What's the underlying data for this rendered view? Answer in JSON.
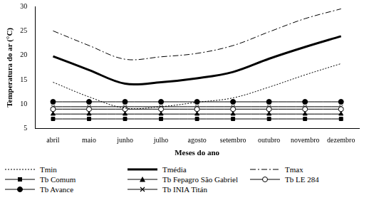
{
  "chart_data": {
    "type": "line",
    "x_label": "Meses do ano",
    "y_label": "Temperatura do ar (°C)",
    "categories": [
      "abril",
      "maio",
      "junho",
      "julho",
      "agosto",
      "setembro",
      "outubro",
      "novembro",
      "dezembro"
    ],
    "ylim": [
      5,
      30
    ],
    "yticks": [
      5,
      10,
      15,
      20,
      25,
      30
    ],
    "grid": false,
    "legend": "bottom",
    "series": [
      {
        "name": "Tmin",
        "color": "#000000",
        "line_style": "dotted",
        "marker": "none",
        "values": [
          14.5,
          11.5,
          9.2,
          9.5,
          10.4,
          11.3,
          13.5,
          16,
          18.3
        ]
      },
      {
        "name": "Tmédia",
        "color": "#000000",
        "line_style": "solid",
        "marker": "none",
        "values": [
          19.8,
          17,
          14.2,
          14.5,
          15.3,
          16.6,
          19.3,
          21.7,
          23.9
        ]
      },
      {
        "name": "Tmax",
        "color": "#000000",
        "line_style": "dashdot",
        "marker": "none",
        "values": [
          25,
          22,
          19.2,
          19.7,
          20.4,
          22,
          24.8,
          27.5,
          29.5
        ]
      },
      {
        "name": "Tb Comum",
        "color": "#000000",
        "line_style": "solid",
        "marker": "square",
        "values": [
          7,
          7,
          7,
          7,
          7,
          7,
          7,
          7,
          7
        ]
      },
      {
        "name": "Tb Fepagro São Gabriel",
        "color": "#000000",
        "line_style": "solid",
        "marker": "triangle",
        "values": [
          8,
          8,
          8,
          8,
          8,
          8,
          8,
          8,
          8
        ]
      },
      {
        "name": "Tb LE 284",
        "color": "#000000",
        "line_style": "solid",
        "marker": "circle_open",
        "values": [
          9,
          9,
          9,
          9,
          9,
          9,
          9,
          9,
          9
        ]
      },
      {
        "name": "Tb Avance",
        "color": "#000000",
        "line_style": "solid",
        "marker": "circle",
        "values": [
          10.5,
          10.5,
          10.5,
          10.5,
          10.5,
          10.5,
          10.5,
          10.5,
          10.5
        ]
      },
      {
        "name": "Tb INIA Titán",
        "color": "#000000",
        "line_style": "solid",
        "marker": "cross",
        "values": [
          9.5,
          9.5,
          9.5,
          9.5,
          9.5,
          9.5,
          9.5,
          9.5,
          9.5
        ]
      }
    ]
  }
}
